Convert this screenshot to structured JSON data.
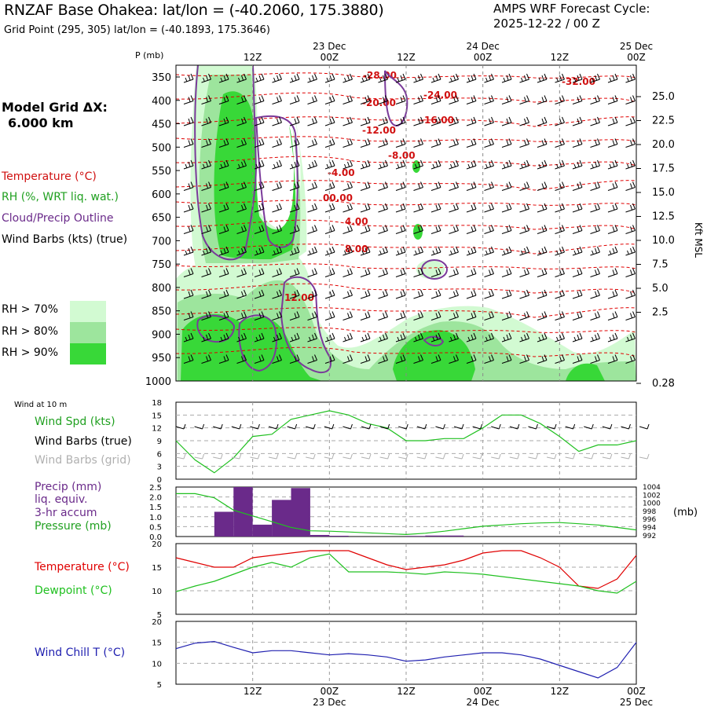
{
  "header": {
    "title": "RNZAF Base Ohakea:  lat/lon = (-40.2060, 175.3880)",
    "subtitle": "Grid Point (295, 305) lat/lon = (-40.1893, 175.3646)",
    "cycle_line1": "AMPS WRF Forecast Cycle:",
    "cycle_line2": "2025-12-22 / 00  Z"
  },
  "sidebar": {
    "model_grid_line1": "Model Grid ΔX:",
    "model_grid_line2": "6.000 km",
    "legend_temperature": "Temperature (°C)",
    "legend_rh": "RH (%, WRT liq. wat.)",
    "legend_cloud": "Cloud/Precip Outline",
    "legend_wind": "Wind Barbs (kts) (true)",
    "rh_levels": [
      "RH > 70%",
      "RH > 80%",
      "RH > 90%"
    ],
    "rh_colors": [
      "#d2fad2",
      "#9de59d",
      "#38d838"
    ],
    "wind10_label": "Wind at 10 m",
    "wind_spd": "Wind Spd (kts)",
    "wind_barbs_true": "Wind Barbs (true)",
    "wind_barbs_grid": "Wind Barbs (grid)",
    "precip_l1": "Precip (mm)",
    "precip_l2": "liq. equiv.",
    "precip_l3": "3-hr accum",
    "pressure": "Pressure (mb)",
    "temp_label": "Temperature (°C)",
    "dew_label": "Dewpoint (°C)",
    "chill_label": "Wind Chill T (°C)"
  },
  "colors": {
    "temperature": "#e00000",
    "dewpoint": "#20c020",
    "windchill": "#2020b0",
    "precip": "#6a2a8a",
    "cloud": "#7a3a9a",
    "text_red": "#d01010",
    "text_purple": "#6a2a8a",
    "text_green": "#20a020",
    "text_gray": "#b0b0b0"
  },
  "chart_data": [
    {
      "type": "cross-section",
      "name": "sounding",
      "ylabel": "P (mb)",
      "pressure_levels": [
        350,
        400,
        450,
        500,
        550,
        600,
        650,
        700,
        750,
        800,
        850,
        900,
        950,
        1000
      ],
      "height_axis_label": "Kft MSL",
      "height_ticks": [
        "25.0",
        "22.5",
        "20.0",
        "17.5",
        "15.0",
        "12.5",
        "10.0",
        "7.5",
        "5.0",
        "2.5",
        "0.28"
      ],
      "time_ticks_top": [
        "12Z",
        "00Z",
        "12Z",
        "00Z",
        "12Z",
        "00Z"
      ],
      "date_ticks_top": [
        "23 Dec",
        "24 Dec",
        "25 Dec"
      ],
      "isotherm_labels": [
        "-28.00",
        "-20.00",
        "-12.00",
        "-8.00",
        "-4.00",
        "00.00",
        "4.00",
        "8.00",
        "12.00",
        "-24.00",
        "-16.00",
        "-32.00"
      ]
    },
    {
      "type": "line",
      "name": "wind10m",
      "ylim": [
        0,
        18
      ],
      "yticks": [
        "0",
        "3",
        "6",
        "9",
        "12",
        "15",
        "18"
      ],
      "x": [
        0,
        3,
        6,
        9,
        12,
        15,
        18,
        21,
        24,
        27,
        30,
        33,
        36,
        39,
        42,
        45,
        48,
        51,
        54,
        57,
        60,
        63,
        66,
        69,
        72
      ],
      "values": [
        9,
        4.5,
        1.5,
        5,
        10,
        10.5,
        14,
        15,
        16,
        15,
        13,
        12,
        9,
        9,
        9.5,
        9.5,
        12,
        15,
        15,
        13,
        10,
        6.5,
        8,
        8,
        9
      ]
    },
    {
      "type": "bar",
      "name": "precip",
      "ylim": [
        0,
        2.5
      ],
      "yticks": [
        "0.0",
        "0.5",
        "1.0",
        "1.5",
        "2.0",
        "2.5"
      ],
      "right_ticks": [
        "1004",
        "1002",
        "1000",
        "998",
        "996",
        "994",
        "992"
      ],
      "right_label": "(mb)",
      "bars": [
        {
          "start": 6,
          "end": 9,
          "value": 1.25
        },
        {
          "start": 9,
          "end": 12,
          "value": 2.5
        },
        {
          "start": 12,
          "end": 15,
          "value": 0.6
        },
        {
          "start": 15,
          "end": 18,
          "value": 1.85
        },
        {
          "start": 18,
          "end": 21,
          "value": 2.45
        },
        {
          "start": 21,
          "end": 24,
          "value": 0.08
        },
        {
          "start": 24,
          "end": 27,
          "value": 0.04
        },
        {
          "start": 36,
          "end": 39,
          "value": 0.03
        },
        {
          "start": 39,
          "end": 42,
          "value": 0.05
        },
        {
          "start": 42,
          "end": 45,
          "value": 0.05
        }
      ],
      "pressure_x": [
        0,
        3,
        6,
        9,
        12,
        15,
        18,
        21,
        24,
        27,
        30,
        33,
        36,
        39,
        42,
        45,
        48,
        51,
        54,
        57,
        60,
        63,
        66,
        69,
        72
      ],
      "pressure_mb": [
        1002.4,
        1002.4,
        1001.4,
        998.4,
        997,
        995.6,
        994.2,
        993.4,
        993.3,
        993.1,
        992.9,
        992.7,
        992.5,
        992.8,
        993.3,
        993.9,
        994.5,
        994.8,
        995.1,
        995.3,
        995.4,
        995.1,
        994.8,
        994.2,
        993.6
      ]
    },
    {
      "type": "line",
      "name": "temperature_dewpoint",
      "ylim": [
        5,
        20
      ],
      "yticks": [
        "5",
        "10",
        "15",
        "20"
      ],
      "x": [
        0,
        3,
        6,
        9,
        12,
        15,
        18,
        21,
        24,
        27,
        30,
        33,
        36,
        39,
        42,
        45,
        48,
        51,
        54,
        57,
        60,
        63,
        66,
        69,
        72
      ],
      "series": [
        {
          "name": "Temperature",
          "values": [
            17,
            16,
            15,
            15,
            17,
            17.5,
            18,
            18.5,
            18.5,
            18.5,
            17,
            15.5,
            14.5,
            15,
            15.5,
            16.5,
            18,
            18.5,
            18.5,
            17,
            15,
            11,
            10.5,
            12.5,
            17.5
          ]
        },
        {
          "name": "Dewpoint",
          "values": [
            9.8,
            11,
            12,
            13.5,
            15,
            16,
            15,
            17,
            17.8,
            14,
            14,
            14,
            13.8,
            13.5,
            14,
            13.8,
            13.5,
            13,
            12.5,
            12,
            11.5,
            11,
            10,
            9.5,
            12
          ]
        }
      ]
    },
    {
      "type": "line",
      "name": "windchill",
      "ylim": [
        5,
        20
      ],
      "yticks": [
        "5",
        "10",
        "15",
        "20"
      ],
      "x": [
        0,
        3,
        6,
        9,
        12,
        15,
        18,
        21,
        24,
        27,
        30,
        33,
        36,
        39,
        42,
        45,
        48,
        51,
        54,
        57,
        60,
        63,
        66,
        69,
        72
      ],
      "values": [
        13.5,
        14.8,
        15.2,
        13.8,
        12.5,
        13,
        13,
        12.5,
        12,
        12.3,
        12,
        11.5,
        10.5,
        10.8,
        11.5,
        12,
        12.5,
        12.5,
        12,
        11,
        9.5,
        8,
        6.5,
        9,
        15
      ]
    }
  ],
  "bottom_axis": {
    "time_ticks": [
      "12Z",
      "00Z",
      "12Z",
      "00Z",
      "12Z",
      "00Z"
    ],
    "date_ticks": [
      "23 Dec",
      "24 Dec",
      "25 Dec"
    ]
  }
}
